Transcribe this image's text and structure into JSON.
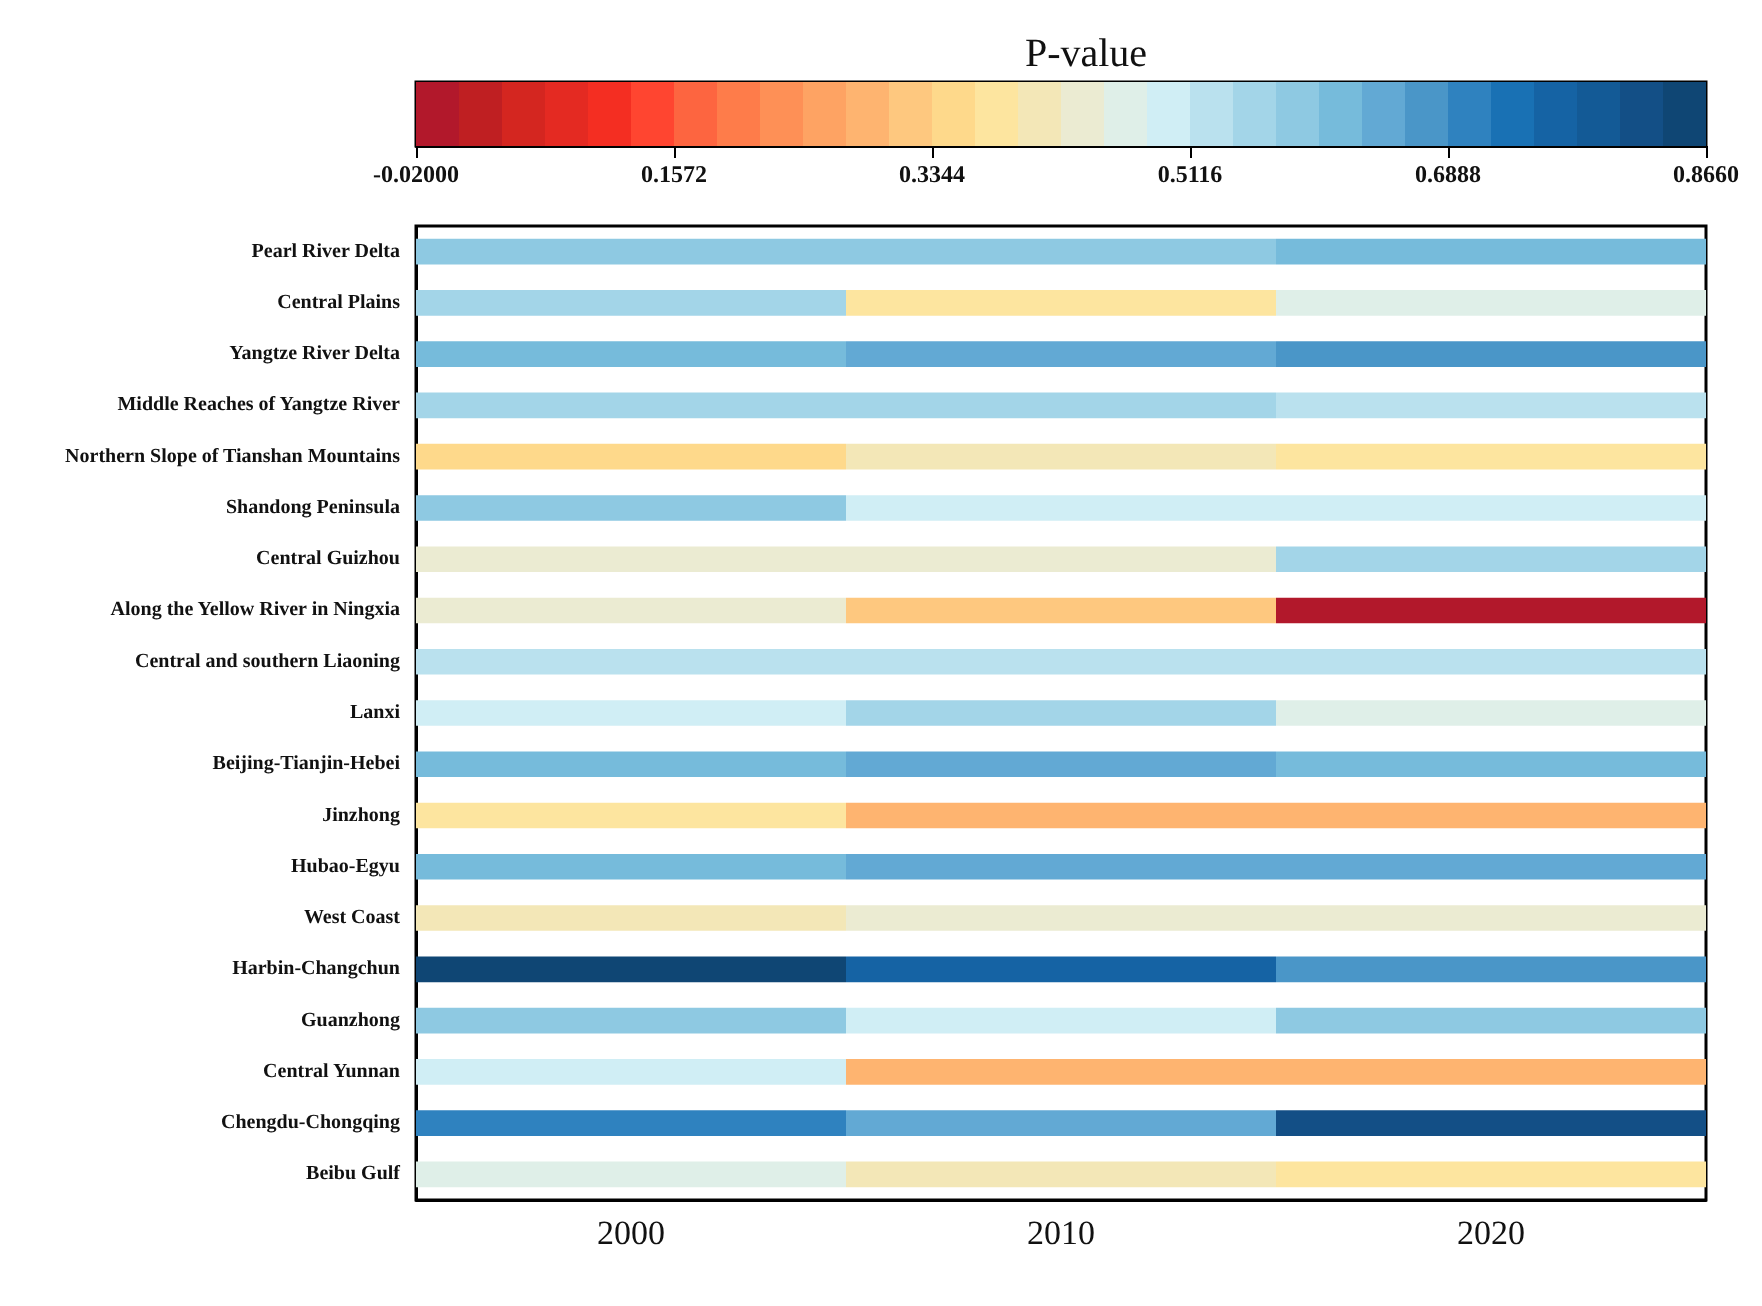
{
  "chart_data": {
    "type": "heatmap",
    "clabel": "P-value",
    "categories": [
      "2000",
      "2010",
      "2020"
    ],
    "y_categories": [
      "Pearl River Delta",
      "Central Plains",
      "Yangtze River Delta",
      "Middle Reaches of Yangtze River",
      "Northern Slope of Tianshan Mountains",
      "Shandong Peninsula",
      "Central Guizhou",
      "Along the Yellow River in Ningxia",
      "Central and southern Liaoning",
      "Lanxi",
      "Beijing-Tianjin-Hebei",
      "Jinzhong",
      "Hubao-Egyu",
      "West Coast",
      "Harbin-Changchun",
      "Guanzhong",
      "Central Yunnan",
      "Chengdu-Chongqing",
      "Beibu Gulf"
    ],
    "cells": [
      [
        0.585,
        0.585,
        0.615
      ],
      [
        0.556,
        0.379,
        0.467
      ],
      [
        0.615,
        0.644,
        0.674
      ],
      [
        0.556,
        0.556,
        0.526
      ],
      [
        0.349,
        0.408,
        0.379
      ],
      [
        0.585,
        0.497,
        0.497
      ],
      [
        0.438,
        0.438,
        0.556
      ],
      [
        0.438,
        0.32,
        -0.005
      ],
      [
        0.526,
        0.526,
        0.526
      ],
      [
        0.497,
        0.556,
        0.467
      ],
      [
        0.615,
        0.644,
        0.615
      ],
      [
        0.379,
        0.29,
        0.29
      ],
      [
        0.615,
        0.644,
        0.644
      ],
      [
        0.408,
        0.438,
        0.438
      ],
      [
        0.851,
        0.763,
        0.674
      ],
      [
        0.585,
        0.497,
        0.585
      ],
      [
        0.497,
        0.29,
        0.29
      ],
      [
        0.704,
        0.644,
        0.822
      ],
      [
        0.467,
        0.408,
        0.379
      ]
    ],
    "clim": [
      -0.02,
      0.866
    ],
    "cticks": [
      {
        "value": -0.02,
        "label": "-0.02000"
      },
      0.1572,
      0.3344,
      0.5116,
      0.6888,
      {
        "value": 0.866,
        "label": "0.8660"
      }
    ]
  }
}
